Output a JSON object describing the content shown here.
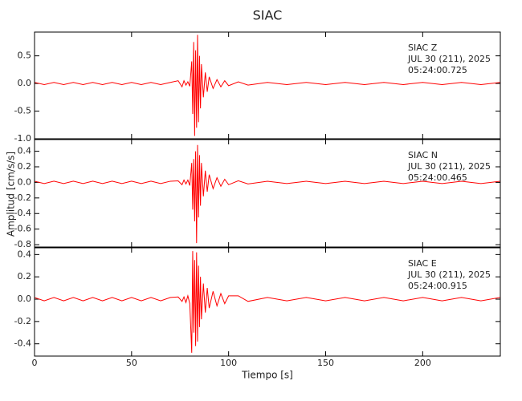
{
  "title": "SIAC",
  "x_label": "Tiempo [s]",
  "y_label": "Amplitud [cm/s/s]",
  "chart_data": [
    {
      "type": "line",
      "color": "#ff0000",
      "annotations": [
        "SIAC   Z",
        "JUL 30 (211), 2025",
        "05:24:00.725"
      ],
      "xlim": [
        0,
        240
      ],
      "xticks": [
        0,
        50,
        100,
        150,
        200
      ],
      "ylim": [
        -1.0,
        0.93
      ],
      "yticks": [
        {
          "value": 0.5,
          "label": "0.5"
        },
        {
          "value": 0,
          "label": "0.0"
        },
        {
          "value": -0.5,
          "label": "-0.5"
        },
        {
          "value": -1.0,
          "label": "-1.0"
        }
      ],
      "x": [
        0,
        5,
        10,
        15,
        20,
        25,
        30,
        35,
        40,
        45,
        50,
        55,
        60,
        65,
        70,
        74,
        76,
        77,
        78,
        79,
        80,
        81,
        81.5,
        82,
        82.5,
        83,
        83.5,
        84,
        84.5,
        85,
        85.5,
        86,
        87,
        88,
        89,
        90,
        92,
        94,
        96,
        98,
        100,
        105,
        110,
        120,
        130,
        140,
        150,
        160,
        170,
        180,
        190,
        200,
        210,
        220,
        230,
        240
      ],
      "values": [
        0.02,
        -0.02,
        0.02,
        -0.02,
        0.02,
        -0.02,
        0.02,
        -0.02,
        0.02,
        -0.02,
        0.02,
        -0.02,
        0.02,
        -0.02,
        0.02,
        0.05,
        -0.06,
        0.05,
        -0.03,
        0.03,
        -0.05,
        0.4,
        -0.55,
        0.75,
        -0.95,
        0.6,
        -0.8,
        0.88,
        -0.7,
        0.5,
        -0.45,
        0.35,
        -0.25,
        0.2,
        -0.15,
        0.12,
        -0.09,
        0.07,
        -0.06,
        0.05,
        -0.04,
        0.03,
        -0.03,
        0.02,
        -0.02,
        0.02,
        -0.02,
        0.02,
        -0.02,
        0.02,
        -0.02,
        0.02,
        -0.02,
        0.02,
        -0.02,
        0.02
      ]
    },
    {
      "type": "line",
      "color": "#ff0000",
      "annotations": [
        "SIAC   N",
        "JUL 30 (211), 2025",
        "05:24:00.465"
      ],
      "xlim": [
        0,
        240
      ],
      "xticks": [
        0,
        50,
        100,
        150,
        200
      ],
      "ylim": [
        -0.83,
        0.55
      ],
      "yticks": [
        0.4,
        0.2,
        {
          "value": 0,
          "label": "0.0"
        },
        -0.2,
        -0.4,
        -0.6,
        -0.8
      ],
      "x": [
        0,
        5,
        10,
        15,
        20,
        25,
        30,
        35,
        40,
        45,
        50,
        55,
        60,
        65,
        70,
        74,
        76,
        77,
        78,
        79,
        80,
        81,
        81.5,
        82,
        82.5,
        83,
        83.5,
        84,
        84.5,
        85,
        85.5,
        86,
        87,
        88,
        89,
        90,
        92,
        94,
        96,
        98,
        100,
        105,
        110,
        120,
        130,
        140,
        150,
        160,
        170,
        180,
        190,
        200,
        210,
        220,
        230,
        240
      ],
      "values": [
        0.015,
        -0.015,
        0.015,
        -0.015,
        0.015,
        -0.015,
        0.015,
        -0.015,
        0.015,
        -0.015,
        0.015,
        -0.015,
        0.015,
        -0.015,
        0.015,
        0.02,
        -0.03,
        0.03,
        -0.02,
        0.03,
        -0.04,
        0.25,
        -0.35,
        0.3,
        -0.5,
        0.4,
        -0.78,
        0.48,
        -0.45,
        0.35,
        -0.3,
        0.25,
        -0.18,
        0.15,
        -0.12,
        0.1,
        -0.08,
        0.06,
        -0.05,
        0.04,
        -0.03,
        0.02,
        -0.02,
        0.015,
        -0.015,
        0.015,
        -0.015,
        0.015,
        -0.015,
        0.015,
        -0.015,
        0.015,
        -0.015,
        0.015,
        -0.015,
        0.015
      ]
    },
    {
      "type": "line",
      "color": "#ff0000",
      "annotations": [
        "SIAC   E",
        "JUL 30 (211), 2025",
        "05:24:00.915"
      ],
      "xlim": [
        0,
        240
      ],
      "xticks": [
        0,
        50,
        100,
        150,
        200
      ],
      "show_xtick_labels": true,
      "ylim": [
        -0.51,
        0.46
      ],
      "yticks": [
        0.4,
        0.2,
        {
          "value": 0,
          "label": "0.0"
        },
        -0.2,
        -0.4
      ],
      "x": [
        0,
        5,
        10,
        15,
        20,
        25,
        30,
        35,
        40,
        45,
        50,
        55,
        60,
        65,
        70,
        74,
        76,
        77,
        78,
        79,
        80,
        81,
        81.5,
        82,
        82.5,
        83,
        83.5,
        84,
        84.5,
        85,
        85.5,
        86,
        87,
        88,
        89,
        90,
        92,
        94,
        96,
        98,
        100,
        105,
        110,
        120,
        130,
        140,
        150,
        160,
        170,
        180,
        190,
        200,
        210,
        220,
        230,
        240
      ],
      "values": [
        0.015,
        -0.015,
        0.015,
        -0.015,
        0.015,
        -0.015,
        0.015,
        -0.015,
        0.015,
        -0.015,
        0.015,
        -0.015,
        0.015,
        -0.015,
        0.015,
        0.02,
        -0.02,
        0.02,
        -0.03,
        0.03,
        -0.04,
        -0.48,
        0.43,
        -0.3,
        0.35,
        -0.42,
        0.42,
        -0.38,
        0.3,
        -0.25,
        0.2,
        -0.18,
        0.14,
        -0.12,
        0.1,
        -0.08,
        0.07,
        -0.06,
        0.05,
        -0.04,
        0.03,
        0.03,
        -0.02,
        0.015,
        -0.015,
        0.015,
        -0.015,
        0.015,
        -0.015,
        0.015,
        -0.015,
        0.015,
        -0.015,
        0.015,
        -0.015,
        0.015
      ]
    }
  ]
}
